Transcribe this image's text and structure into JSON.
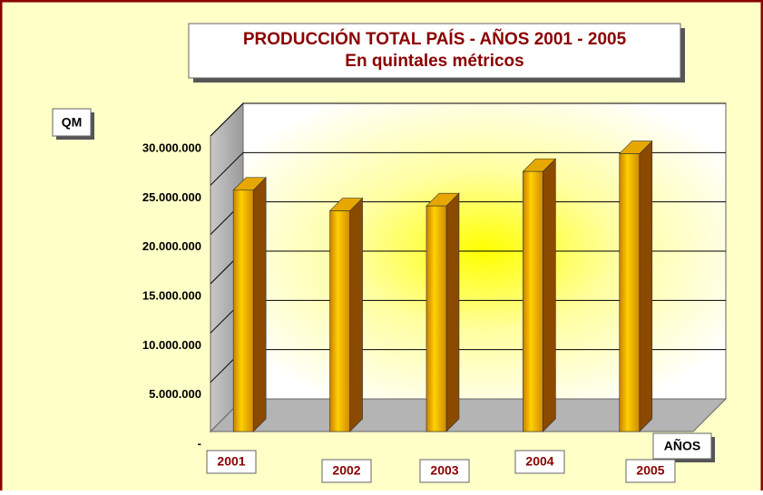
{
  "chart_data": {
    "type": "bar3d",
    "title": "PRODUCCIÓN TOTAL PAÍS  -  AÑOS 2001 - 2005",
    "subtitle": "En quintales métricos",
    "y_label": "QM",
    "x_label": "AÑOS",
    "categories": [
      "2001",
      "2002",
      "2003",
      "2004",
      "2005"
    ],
    "values": [
      24500000,
      22400000,
      22900000,
      26400000,
      28200000
    ],
    "color": "#f2b200",
    "ylim": [
      0,
      30000000
    ],
    "yticks": [
      {
        "value": 0,
        "label": "-"
      },
      {
        "value": 5000000,
        "label": "5.000.000"
      },
      {
        "value": 10000000,
        "label": "10.000.000"
      },
      {
        "value": 15000000,
        "label": "15.000.000"
      },
      {
        "value": 20000000,
        "label": "20.000.000"
      },
      {
        "value": 25000000,
        "label": "25.000.000"
      },
      {
        "value": 30000000,
        "label": "30.000.000"
      }
    ],
    "grid": true
  }
}
